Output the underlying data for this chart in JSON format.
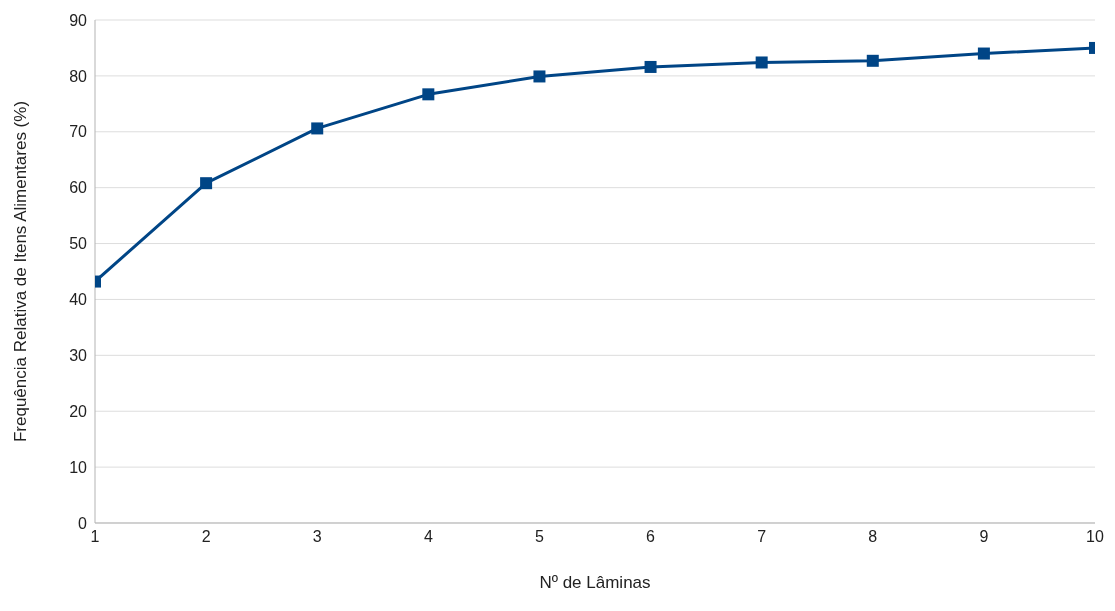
{
  "chart_data": {
    "type": "line",
    "xlabel": "Nº de Lâminas",
    "ylabel": "Frequência Relativa de Itens Alimentares (%)",
    "x": [
      1,
      2,
      3,
      4,
      5,
      6,
      7,
      8,
      9,
      10
    ],
    "series": [
      {
        "color": "#004586",
        "values": [
          43.2,
          60.8,
          70.6,
          76.7,
          79.9,
          81.6,
          82.4,
          82.7,
          84.0,
          85.0
        ]
      }
    ],
    "xlim": [
      1,
      10
    ],
    "xticks": [
      1,
      2,
      3,
      4,
      5,
      6,
      7,
      8,
      9,
      10
    ],
    "ylim": [
      0,
      90
    ],
    "yticks": [
      0,
      10,
      20,
      30,
      40,
      50,
      60,
      70,
      80,
      90
    ],
    "grid": "y",
    "legend": false,
    "marker": "square",
    "line_style": "solid"
  }
}
